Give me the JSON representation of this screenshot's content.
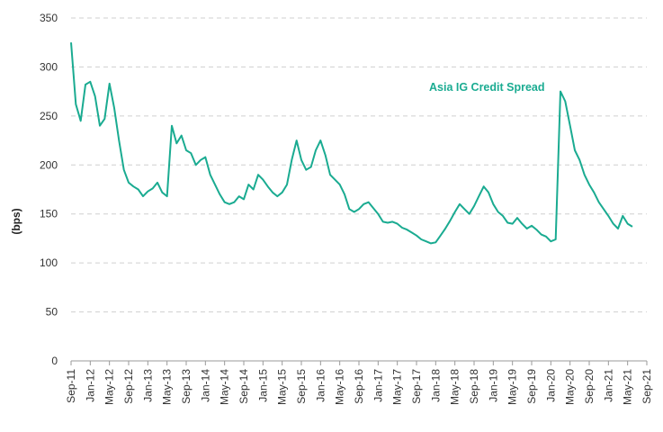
{
  "chart_data": {
    "type": "line",
    "title": "",
    "xlabel": "",
    "ylabel": "(bps)",
    "ylim": [
      0,
      350
    ],
    "yticks": [
      "0",
      "50",
      "100",
      "150",
      "200",
      "250",
      "300",
      "350"
    ],
    "xticks": [
      "Sep-11",
      "Jan-12",
      "May-12",
      "Sep-12",
      "Jan-13",
      "May-13",
      "Sep-13",
      "Jan-14",
      "May-14",
      "Sep-14",
      "Jan-15",
      "May-15",
      "Sep-15",
      "Jan-16",
      "May-16",
      "Sep-16",
      "Jan-17",
      "May-17",
      "Sep-17",
      "Jan-18",
      "May-18",
      "Sep-18",
      "Jan-19",
      "May-19",
      "Sep-19",
      "Jan-20",
      "May-20",
      "Sep-20",
      "Jan-21",
      "May-21",
      "Sep-21"
    ],
    "grid": true,
    "series": [
      {
        "name": "Asia IG Credit Spread",
        "color": "#1aab91",
        "points": [
          [
            "2011-09",
            325
          ],
          [
            "2011-10",
            262
          ],
          [
            "2011-11",
            245
          ],
          [
            "2011-12",
            282
          ],
          [
            "2012-01",
            285
          ],
          [
            "2012-02",
            270
          ],
          [
            "2012-03",
            240
          ],
          [
            "2012-04",
            247
          ],
          [
            "2012-05",
            283
          ],
          [
            "2012-06",
            258
          ],
          [
            "2012-07",
            225
          ],
          [
            "2012-08",
            195
          ],
          [
            "2012-09",
            182
          ],
          [
            "2012-10",
            178
          ],
          [
            "2012-11",
            175
          ],
          [
            "2012-12",
            168
          ],
          [
            "2013-01",
            173
          ],
          [
            "2013-02",
            176
          ],
          [
            "2013-03",
            182
          ],
          [
            "2013-04",
            172
          ],
          [
            "2013-05",
            168
          ],
          [
            "2013-06",
            240
          ],
          [
            "2013-07",
            222
          ],
          [
            "2013-08",
            230
          ],
          [
            "2013-09",
            215
          ],
          [
            "2013-10",
            212
          ],
          [
            "2013-11",
            200
          ],
          [
            "2013-12",
            205
          ],
          [
            "2014-01",
            208
          ],
          [
            "2014-02",
            190
          ],
          [
            "2014-03",
            180
          ],
          [
            "2014-04",
            170
          ],
          [
            "2014-05",
            162
          ],
          [
            "2014-06",
            160
          ],
          [
            "2014-07",
            162
          ],
          [
            "2014-08",
            168
          ],
          [
            "2014-09",
            165
          ],
          [
            "2014-10",
            180
          ],
          [
            "2014-11",
            175
          ],
          [
            "2014-12",
            190
          ],
          [
            "2015-01",
            185
          ],
          [
            "2015-02",
            178
          ],
          [
            "2015-03",
            172
          ],
          [
            "2015-04",
            168
          ],
          [
            "2015-05",
            172
          ],
          [
            "2015-06",
            180
          ],
          [
            "2015-07",
            205
          ],
          [
            "2015-08",
            225
          ],
          [
            "2015-09",
            205
          ],
          [
            "2015-10",
            195
          ],
          [
            "2015-11",
            198
          ],
          [
            "2015-12",
            215
          ],
          [
            "2016-01",
            225
          ],
          [
            "2016-02",
            210
          ],
          [
            "2016-03",
            190
          ],
          [
            "2016-04",
            185
          ],
          [
            "2016-05",
            180
          ],
          [
            "2016-06",
            170
          ],
          [
            "2016-07",
            155
          ],
          [
            "2016-08",
            152
          ],
          [
            "2016-09",
            155
          ],
          [
            "2016-10",
            160
          ],
          [
            "2016-11",
            162
          ],
          [
            "2016-12",
            156
          ],
          [
            "2017-01",
            150
          ],
          [
            "2017-02",
            142
          ],
          [
            "2017-03",
            141
          ],
          [
            "2017-04",
            142
          ],
          [
            "2017-05",
            140
          ],
          [
            "2017-06",
            136
          ],
          [
            "2017-07",
            134
          ],
          [
            "2017-08",
            131
          ],
          [
            "2017-09",
            128
          ],
          [
            "2017-10",
            124
          ],
          [
            "2017-11",
            122
          ],
          [
            "2017-12",
            120
          ],
          [
            "2018-01",
            121
          ],
          [
            "2018-02",
            128
          ],
          [
            "2018-03",
            135
          ],
          [
            "2018-04",
            143
          ],
          [
            "2018-05",
            152
          ],
          [
            "2018-06",
            160
          ],
          [
            "2018-07",
            155
          ],
          [
            "2018-08",
            150
          ],
          [
            "2018-09",
            158
          ],
          [
            "2018-10",
            168
          ],
          [
            "2018-11",
            178
          ],
          [
            "2018-12",
            172
          ],
          [
            "2019-01",
            160
          ],
          [
            "2019-02",
            152
          ],
          [
            "2019-03",
            148
          ],
          [
            "2019-04",
            141
          ],
          [
            "2019-05",
            140
          ],
          [
            "2019-06",
            146
          ],
          [
            "2019-07",
            140
          ],
          [
            "2019-08",
            135
          ],
          [
            "2019-09",
            138
          ],
          [
            "2019-10",
            134
          ],
          [
            "2019-11",
            129
          ],
          [
            "2019-12",
            127
          ],
          [
            "2020-01",
            122
          ],
          [
            "2020-02",
            124
          ],
          [
            "2020-03",
            275
          ],
          [
            "2020-04",
            265
          ],
          [
            "2020-05",
            240
          ],
          [
            "2020-06",
            215
          ],
          [
            "2020-07",
            205
          ],
          [
            "2020-08",
            190
          ],
          [
            "2020-09",
            180
          ],
          [
            "2020-10",
            172
          ],
          [
            "2020-11",
            162
          ],
          [
            "2020-12",
            155
          ],
          [
            "2021-01",
            148
          ],
          [
            "2021-02",
            140
          ],
          [
            "2021-03",
            135
          ],
          [
            "2021-04",
            148
          ],
          [
            "2021-05",
            140
          ],
          [
            "2021-06",
            137
          ]
        ]
      }
    ]
  }
}
